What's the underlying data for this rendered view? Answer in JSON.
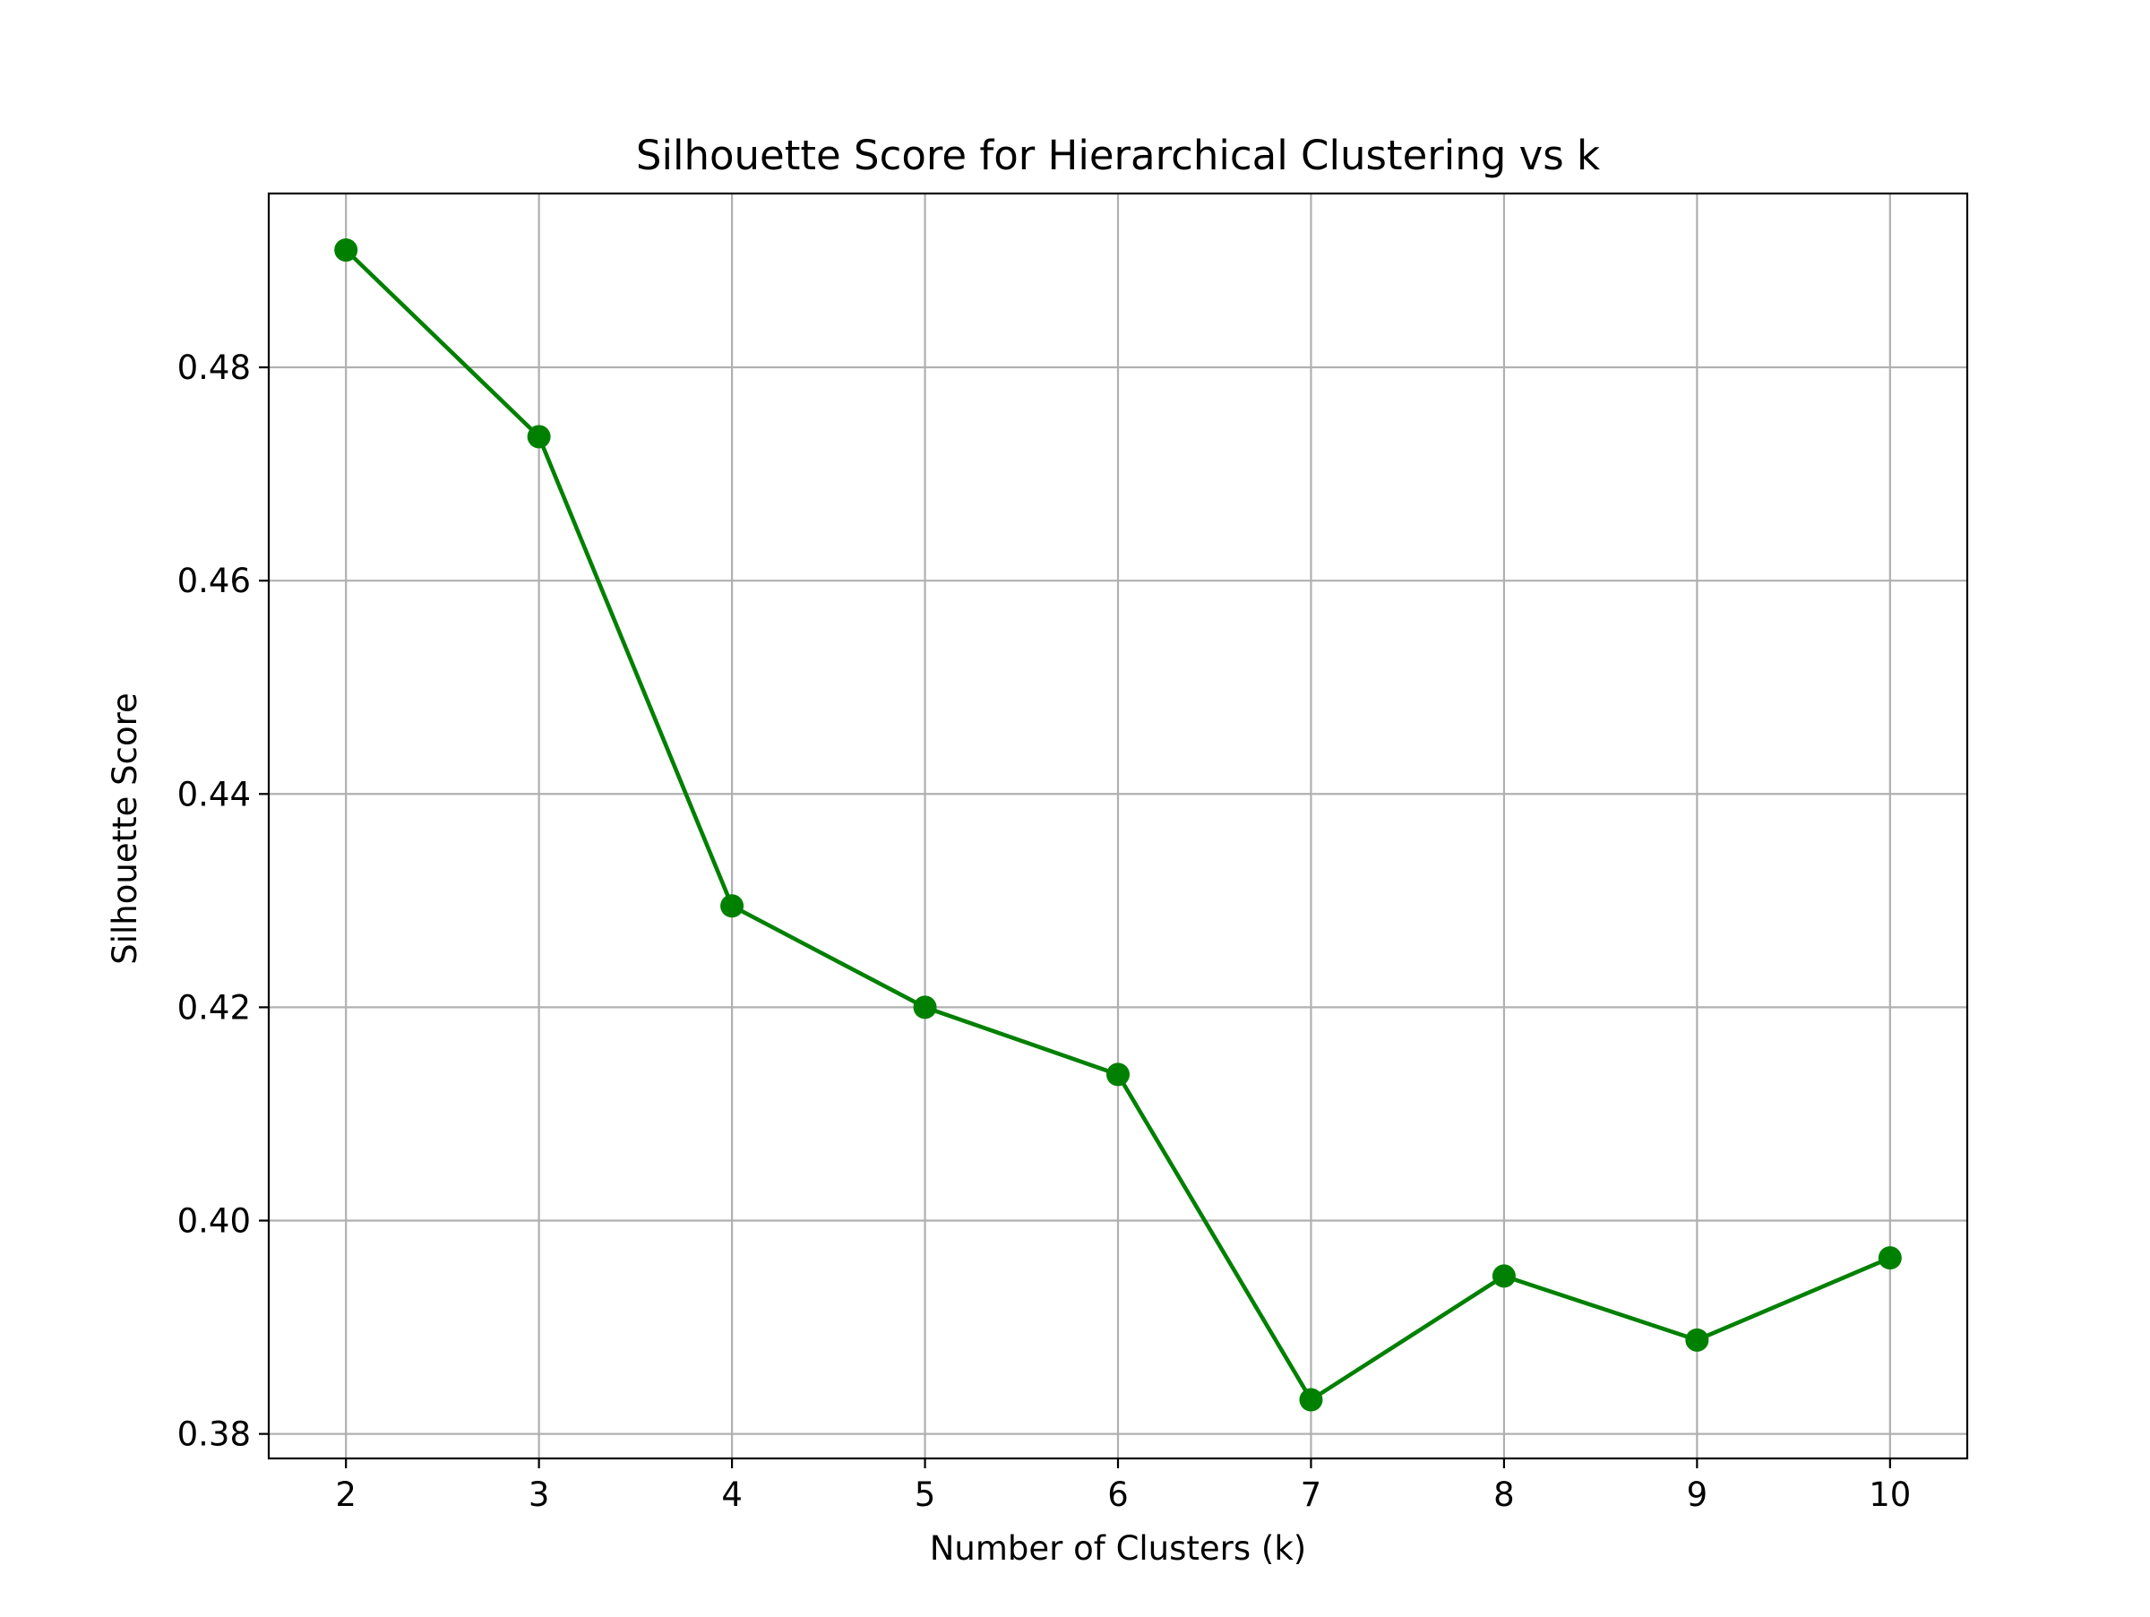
{
  "chart_data": {
    "type": "line",
    "title": "Silhouette Score for Hierarchical Clustering vs k",
    "xlabel": "Number of Clusters (k)",
    "ylabel": "Silhouette Score",
    "x": [
      2,
      3,
      4,
      5,
      6,
      7,
      8,
      9,
      10
    ],
    "series": [
      {
        "values": [
          0.491,
          0.4735,
          0.4295,
          0.42,
          0.4137,
          0.3832,
          0.3948,
          0.3888,
          0.3965
        ],
        "color": "#008000",
        "marker": "circle"
      }
    ],
    "xticks": [
      "2",
      "3",
      "4",
      "5",
      "6",
      "7",
      "8",
      "9",
      "10"
    ],
    "yticks": [
      "0.38",
      "0.40",
      "0.42",
      "0.44",
      "0.46",
      "0.48"
    ],
    "xlim": [
      1.6,
      10.4
    ],
    "ylim": [
      0.3777,
      0.4963
    ],
    "grid": true,
    "grid_color": "#b0b0b0"
  }
}
